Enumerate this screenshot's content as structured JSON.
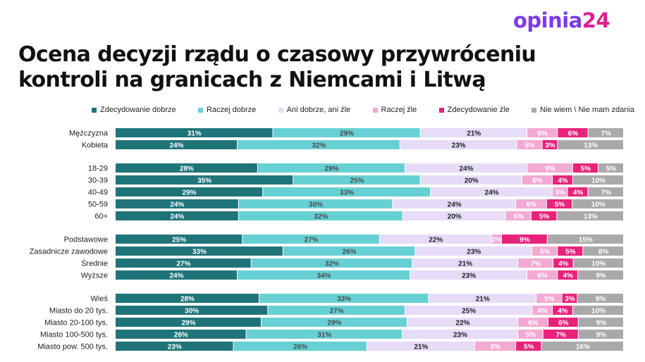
{
  "logo": {
    "part1": "opinia",
    "part2": "24"
  },
  "chart_data": {
    "type": "bar",
    "orientation": "horizontal",
    "stacked": true,
    "normalized": true,
    "title": "Ocena decyzji rządu o czasowy przywróceniu kontroli na granicach z Niemcami i Litwą",
    "legend_position": "top",
    "colors": [
      "#1f7479",
      "#67d0d4",
      "#e6dcf7",
      "#f2a9d2",
      "#e8217b",
      "#a9a9a9"
    ],
    "series": [
      {
        "name": "Zdecydowanie dobrze",
        "values": [
          31,
          24,
          28,
          35,
          29,
          24,
          24,
          25,
          33,
          27,
          24,
          28,
          30,
          29,
          26,
          23
        ]
      },
      {
        "name": "Raczej dobrze",
        "values": [
          29,
          32,
          29,
          25,
          33,
          30,
          32,
          27,
          26,
          32,
          34,
          33,
          27,
          29,
          31,
          26
        ]
      },
      {
        "name": "Ani dobrze, ani źle",
        "values": [
          21,
          23,
          24,
          20,
          24,
          24,
          20,
          22,
          23,
          21,
          23,
          21,
          25,
          22,
          23,
          21
        ]
      },
      {
        "name": "Raczej źle",
        "values": [
          6,
          5,
          9,
          6,
          3,
          6,
          5,
          2,
          5,
          7,
          6,
          5,
          4,
          6,
          5,
          8
        ]
      },
      {
        "name": "Zdecydowanie źle",
        "values": [
          6,
          3,
          5,
          4,
          4,
          5,
          5,
          9,
          5,
          4,
          4,
          3,
          4,
          6,
          7,
          5
        ]
      },
      {
        "name": "Nie wiem \\ Nie mam zdania",
        "values": [
          7,
          13,
          5,
          10,
          7,
          10,
          13,
          15,
          8,
          10,
          9,
          9,
          10,
          9,
          9,
          16
        ]
      }
    ],
    "groups": [
      {
        "categories": [
          "Mężczyzna",
          "Kobieta"
        ]
      },
      {
        "categories": [
          "18-29",
          "30-39",
          "40-49",
          "50-59",
          "60+"
        ]
      },
      {
        "categories": [
          "Podstawowe",
          "Zasadnicze zawodowe",
          "Średnie",
          "Wyższe"
        ]
      },
      {
        "categories": [
          "Wieś",
          "Miasto do 20 tys.",
          "Miasto 20-100 tys.",
          "Miasto 100-500 tys.",
          "Miasto pow. 500 tys."
        ]
      }
    ],
    "value_suffix": "%"
  }
}
